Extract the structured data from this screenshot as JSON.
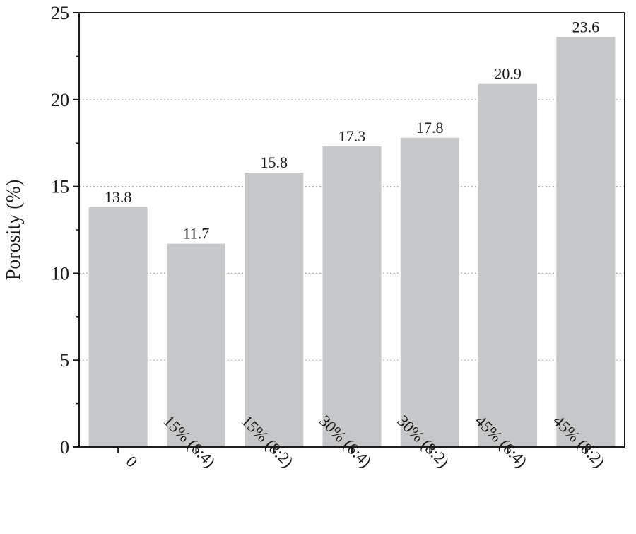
{
  "chart_data": {
    "type": "bar",
    "title": "",
    "xlabel": "",
    "ylabel": "Porosity (%)",
    "categories": [
      "0",
      "15% (6:4)",
      "15% (8:2)",
      "30% (6:4)",
      "30% (8:2)",
      "45% (6:4)",
      "45% (8:2)"
    ],
    "values": [
      13.8,
      11.7,
      15.8,
      17.3,
      17.8,
      20.9,
      23.6
    ],
    "data_labels": [
      "13.8",
      "11.7",
      "15.8",
      "17.3",
      "17.8",
      "20.9",
      "23.6"
    ],
    "ylim": [
      0,
      25
    ],
    "yticks": [
      0,
      5,
      10,
      15,
      20,
      25
    ],
    "ytick_labels": [
      "0",
      "5",
      "10",
      "15",
      "20",
      "25"
    ],
    "grid": "horizontal dotted",
    "legend": "none",
    "colors": {
      "bar": "#c6c7c8",
      "axis": "#1a1a1a",
      "grid": "#b0b0b0"
    }
  }
}
